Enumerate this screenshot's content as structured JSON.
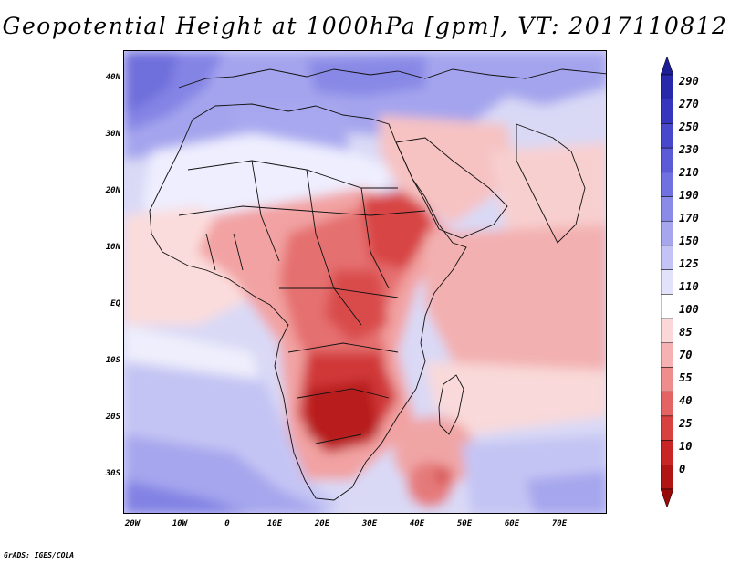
{
  "title": "Geopotential Height at 1000hPa [gpm], VT: 2017110812",
  "lat_labels": [
    "40N",
    "30N",
    "20N",
    "10N",
    "EQ",
    "10S",
    "20S",
    "30S"
  ],
  "lon_labels": [
    "20W",
    "10W",
    "0",
    "10E",
    "20E",
    "30E",
    "40E",
    "50E",
    "60E",
    "70E"
  ],
  "colorbar": {
    "levels": [
      "290",
      "270",
      "250",
      "230",
      "210",
      "190",
      "170",
      "150",
      "125",
      "110",
      "100",
      "85",
      "70",
      "55",
      "40",
      "25",
      "10",
      "0"
    ],
    "colors": [
      "#1c1c94",
      "#2828aa",
      "#3535bd",
      "#4848cc",
      "#5b5bd8",
      "#7070e0",
      "#8a8ae8",
      "#a6a6ef",
      "#c3c3f5",
      "#e2e2fa",
      "#ffffff",
      "#fbd7d7",
      "#f6b2b2",
      "#ef8d8d",
      "#e46464",
      "#d94040",
      "#c82525",
      "#b01414",
      "#980a0a"
    ]
  },
  "credit": "GrADS: IGES/COLA"
}
